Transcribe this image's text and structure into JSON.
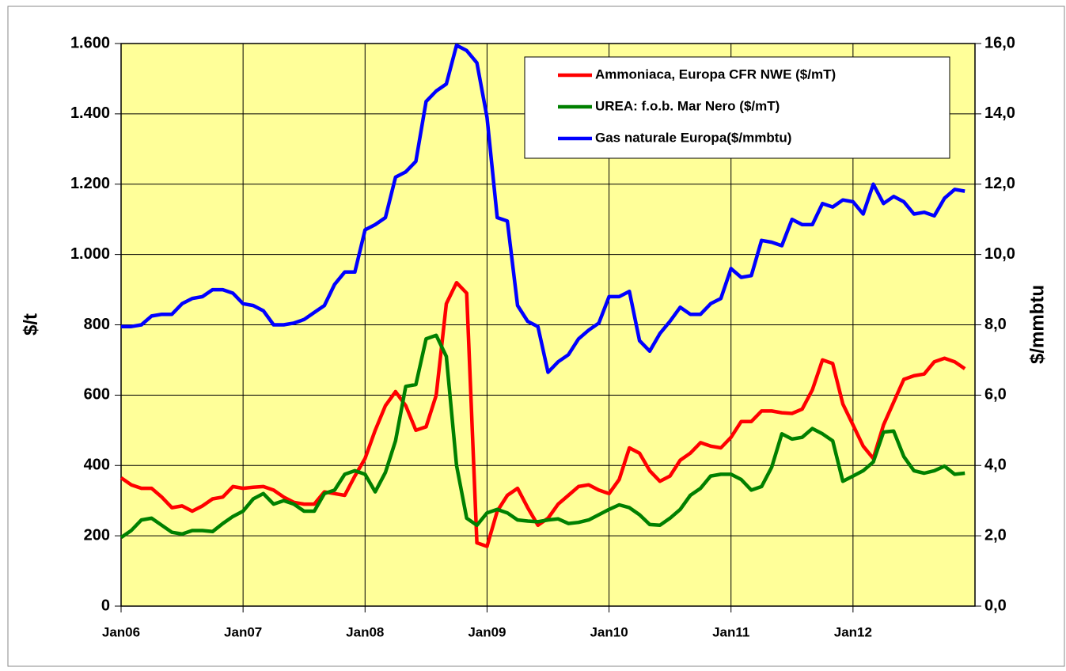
{
  "chart_data": {
    "type": "line",
    "categories": [
      "Jan06",
      null,
      null,
      null,
      null,
      null,
      null,
      null,
      null,
      null,
      null,
      null,
      "Jan07",
      null,
      null,
      null,
      null,
      null,
      null,
      null,
      null,
      null,
      null,
      null,
      "Jan08",
      null,
      null,
      null,
      null,
      null,
      null,
      null,
      null,
      null,
      null,
      null,
      "Jan09",
      null,
      null,
      null,
      null,
      null,
      null,
      null,
      null,
      null,
      null,
      null,
      "Jan10",
      null,
      null,
      null,
      null,
      null,
      null,
      null,
      null,
      null,
      null,
      null,
      "Jan11",
      null,
      null,
      null,
      null,
      null,
      null,
      null,
      null,
      null,
      null,
      null,
      "Jan12",
      null,
      null,
      null,
      null,
      null,
      null,
      null,
      null,
      null,
      null,
      null
    ],
    "y_label": "$/t",
    "y2_label": "$/mmbtu",
    "ylim": [
      0,
      1600
    ],
    "yticks": [
      {
        "value": 0,
        "label": "0"
      },
      {
        "value": 200,
        "label": "200"
      },
      {
        "value": 400,
        "label": "400"
      },
      {
        "value": 600,
        "label": "600"
      },
      {
        "value": 800,
        "label": "800"
      },
      {
        "value": 1000,
        "label": "1.000"
      },
      {
        "value": 1200,
        "label": "1.200"
      },
      {
        "value": 1400,
        "label": "1.400"
      },
      {
        "value": 1600,
        "label": "1.600"
      }
    ],
    "y2lim": [
      0,
      16
    ],
    "y2ticks": [
      {
        "value": 0,
        "label": "0,0"
      },
      {
        "value": 2,
        "label": "2,0"
      },
      {
        "value": 4,
        "label": "4,0"
      },
      {
        "value": 6,
        "label": "6,0"
      },
      {
        "value": 8,
        "label": "8,0"
      },
      {
        "value": 10,
        "label": "10,0"
      },
      {
        "value": 12,
        "label": "12,0"
      },
      {
        "value": 14,
        "label": "14,0"
      },
      {
        "value": 16,
        "label": "16,0"
      }
    ],
    "grid": true,
    "series": [
      {
        "name": "Ammoniaca, Europa CFR NWE ($/mT)",
        "color": "#ff0000",
        "axis": "y",
        "values": [
          365,
          345,
          335,
          335,
          310,
          280,
          285,
          270,
          285,
          305,
          310,
          340,
          335,
          338,
          340,
          330,
          310,
          295,
          290,
          290,
          325,
          320,
          315,
          370,
          420,
          500,
          570,
          610,
          570,
          500,
          510,
          600,
          860,
          920,
          890,
          180,
          170,
          270,
          315,
          335,
          280,
          230,
          250,
          290,
          315,
          340,
          345,
          330,
          320,
          360,
          450,
          435,
          385,
          355,
          370,
          415,
          435,
          465,
          455,
          450,
          480,
          525,
          525,
          555,
          555,
          550,
          548,
          560,
          615,
          700,
          690,
          575,
          515,
          455,
          420,
          515,
          580,
          645,
          655,
          660,
          695,
          705,
          695,
          675
        ]
      },
      {
        "name": "UREA:  f.o.b. Mar Nero ($/mT)",
        "color": "#008000",
        "axis": "y",
        "values": [
          195,
          215,
          245,
          250,
          230,
          210,
          205,
          215,
          215,
          212,
          235,
          255,
          270,
          305,
          320,
          290,
          300,
          290,
          270,
          270,
          320,
          330,
          375,
          385,
          375,
          325,
          380,
          470,
          625,
          630,
          760,
          770,
          710,
          400,
          250,
          230,
          265,
          275,
          265,
          245,
          242,
          240,
          245,
          248,
          235,
          238,
          245,
          260,
          275,
          288,
          280,
          260,
          232,
          230,
          250,
          275,
          315,
          335,
          370,
          375,
          375,
          360,
          330,
          340,
          395,
          490,
          475,
          480,
          505,
          490,
          470,
          355,
          370,
          385,
          410,
          495,
          498,
          425,
          385,
          378,
          385,
          398,
          375,
          378
        ]
      },
      {
        "name": "Gas naturale  Europa($/mmbtu)",
        "color": "#0000ff",
        "axis": "y2",
        "values": [
          7.95,
          7.95,
          8.0,
          8.25,
          8.3,
          8.3,
          8.6,
          8.75,
          8.8,
          9.0,
          9.0,
          8.9,
          8.6,
          8.55,
          8.4,
          8.0,
          8.0,
          8.05,
          8.15,
          8.35,
          8.55,
          9.15,
          9.5,
          9.5,
          10.7,
          10.85,
          11.05,
          12.2,
          12.35,
          12.65,
          14.35,
          14.65,
          14.85,
          15.95,
          15.8,
          15.45,
          13.9,
          11.05,
          10.95,
          8.55,
          8.1,
          7.95,
          6.65,
          6.95,
          7.15,
          7.6,
          7.85,
          8.05,
          8.8,
          8.8,
          8.95,
          7.55,
          7.25,
          7.75,
          8.1,
          8.5,
          8.3,
          8.3,
          8.6,
          8.75,
          9.6,
          9.35,
          9.4,
          10.4,
          10.35,
          10.25,
          11.0,
          10.85,
          10.85,
          11.45,
          11.35,
          11.55,
          11.5,
          11.15,
          12.0,
          11.45,
          11.65,
          11.5,
          11.15,
          11.2,
          11.1,
          11.6,
          11.85,
          11.8
        ]
      }
    ]
  }
}
